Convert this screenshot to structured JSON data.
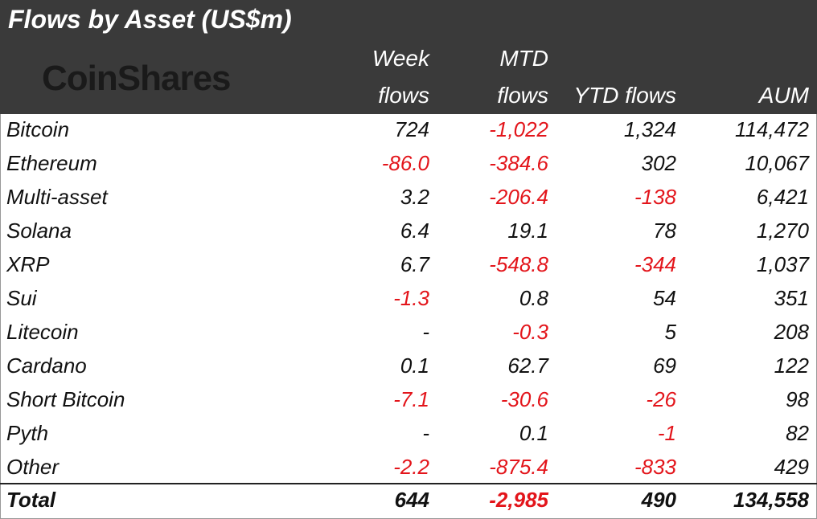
{
  "title": "Flows by Asset (US$m)",
  "brand": "CoinShares",
  "colors": {
    "header_bg": "#3a3a3a",
    "negative": "#e3151b",
    "text": "#111111"
  },
  "headers": {
    "week_line1": "Week",
    "week_line2": "flows",
    "mtd_line1": "MTD",
    "mtd_line2": "flows",
    "ytd": "YTD flows",
    "aum": "AUM"
  },
  "chart_data": {
    "type": "table",
    "title": "Flows by Asset (US$m)",
    "columns": [
      "Week flows",
      "MTD flows",
      "YTD flows",
      "AUM"
    ],
    "rows": [
      {
        "name": "Bitcoin",
        "week": "724",
        "mtd": "-1,022",
        "ytd": "1,324",
        "aum": "114,472"
      },
      {
        "name": "Ethereum",
        "week": "-86.0",
        "mtd": "-384.6",
        "ytd": "302",
        "aum": "10,067"
      },
      {
        "name": "Multi-asset",
        "week": "3.2",
        "mtd": "-206.4",
        "ytd": "-138",
        "aum": "6,421"
      },
      {
        "name": "Solana",
        "week": "6.4",
        "mtd": "19.1",
        "ytd": "78",
        "aum": "1,270"
      },
      {
        "name": "XRP",
        "week": "6.7",
        "mtd": "-548.8",
        "ytd": "-344",
        "aum": "1,037"
      },
      {
        "name": "Sui",
        "week": "-1.3",
        "mtd": "0.8",
        "ytd": "54",
        "aum": "351"
      },
      {
        "name": "Litecoin",
        "week": "-",
        "mtd": "-0.3",
        "ytd": "5",
        "aum": "208"
      },
      {
        "name": "Cardano",
        "week": "0.1",
        "mtd": "62.7",
        "ytd": "69",
        "aum": "122"
      },
      {
        "name": "Short Bitcoin",
        "week": "-7.1",
        "mtd": "-30.6",
        "ytd": "-26",
        "aum": "98"
      },
      {
        "name": "Pyth",
        "week": "-",
        "mtd": "0.1",
        "ytd": "-1",
        "aum": "82"
      },
      {
        "name": "Other",
        "week": "-2.2",
        "mtd": "-875.4",
        "ytd": "-833",
        "aum": "429"
      }
    ],
    "total": {
      "name": "Total",
      "week": "644",
      "mtd": "-2,985",
      "ytd": "490",
      "aum": "134,558"
    }
  }
}
